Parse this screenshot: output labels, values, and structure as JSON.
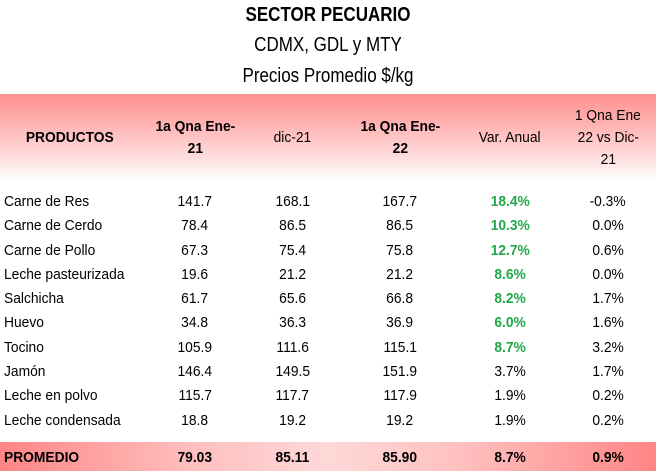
{
  "title": "SECTOR PECUARIO",
  "subtitle": "CDMX, GDL y MTY",
  "subtitle2": "Precios Promedio $/kg",
  "columns": [
    "PRODUCTOS",
    "1a Qna Ene-21",
    "dic-21",
    "1a Qna Ene-22",
    "Var. Anual",
    "1 Qna Ene 22 vs Dic-21"
  ],
  "header_lines": {
    "c0": "PRODUCTOS",
    "c1a": "1a Qna Ene-",
    "c1b": "21",
    "c2": "dic-21",
    "c3a": "1a Qna Ene-",
    "c3b": "22",
    "c4": "Var. Anual",
    "c5a": "1 Qna Ene",
    "c5b": "22 vs Dic-",
    "c5c": "21"
  },
  "rows": [
    {
      "producto": "Carne de Res",
      "ene21": "141.7",
      "dic21": "168.1",
      "ene22": "167.7",
      "var_anual": "18.4%",
      "vs_dic": "-0.3%"
    },
    {
      "producto": "Carne de Cerdo",
      "ene21": "78.4",
      "dic21": "86.5",
      "ene22": "86.5",
      "var_anual": "10.3%",
      "vs_dic": "0.0%"
    },
    {
      "producto": "Carne de Pollo",
      "ene21": "67.3",
      "dic21": "75.4",
      "ene22": "75.8",
      "var_anual": "12.7%",
      "vs_dic": "0.6%"
    },
    {
      "producto": "Leche pasteurizada",
      "ene21": "19.6",
      "dic21": "21.2",
      "ene22": "21.2",
      "var_anual": "8.6%",
      "vs_dic": "0.0%"
    },
    {
      "producto": "Salchicha",
      "ene21": "61.7",
      "dic21": "65.6",
      "ene22": "66.8",
      "var_anual": "8.2%",
      "vs_dic": "1.7%"
    },
    {
      "producto": "Huevo",
      "ene21": "34.8",
      "dic21": "36.3",
      "ene22": "36.9",
      "var_anual": "6.0%",
      "vs_dic": "1.6%"
    },
    {
      "producto": "Tocino",
      "ene21": "105.9",
      "dic21": "111.6",
      "ene22": "115.1",
      "var_anual": "8.7%",
      "vs_dic": "3.2%"
    },
    {
      "producto": "Jamón",
      "ene21": "146.4",
      "dic21": "149.5",
      "ene22": "151.9",
      "var_anual": "3.7%",
      "vs_dic": "1.7%"
    },
    {
      "producto": "Leche en polvo",
      "ene21": "115.7",
      "dic21": "117.7",
      "ene22": "117.9",
      "var_anual": "1.9%",
      "vs_dic": "0.2%"
    },
    {
      "producto": "Leche condensada",
      "ene21": "18.8",
      "dic21": "19.2",
      "ene22": "19.2",
      "var_anual": "1.9%",
      "vs_dic": "0.2%"
    }
  ],
  "highlight_rows": [
    0,
    1,
    2,
    3,
    4,
    5,
    6
  ],
  "footer": {
    "producto": "PROMEDIO",
    "ene21": "79.03",
    "dic21": "85.11",
    "ene22": "85.90",
    "var_anual": "8.7%",
    "vs_dic": "0.9%"
  },
  "colors": {
    "header": "#ff8f8f",
    "highlight_green": "#22a84a"
  }
}
